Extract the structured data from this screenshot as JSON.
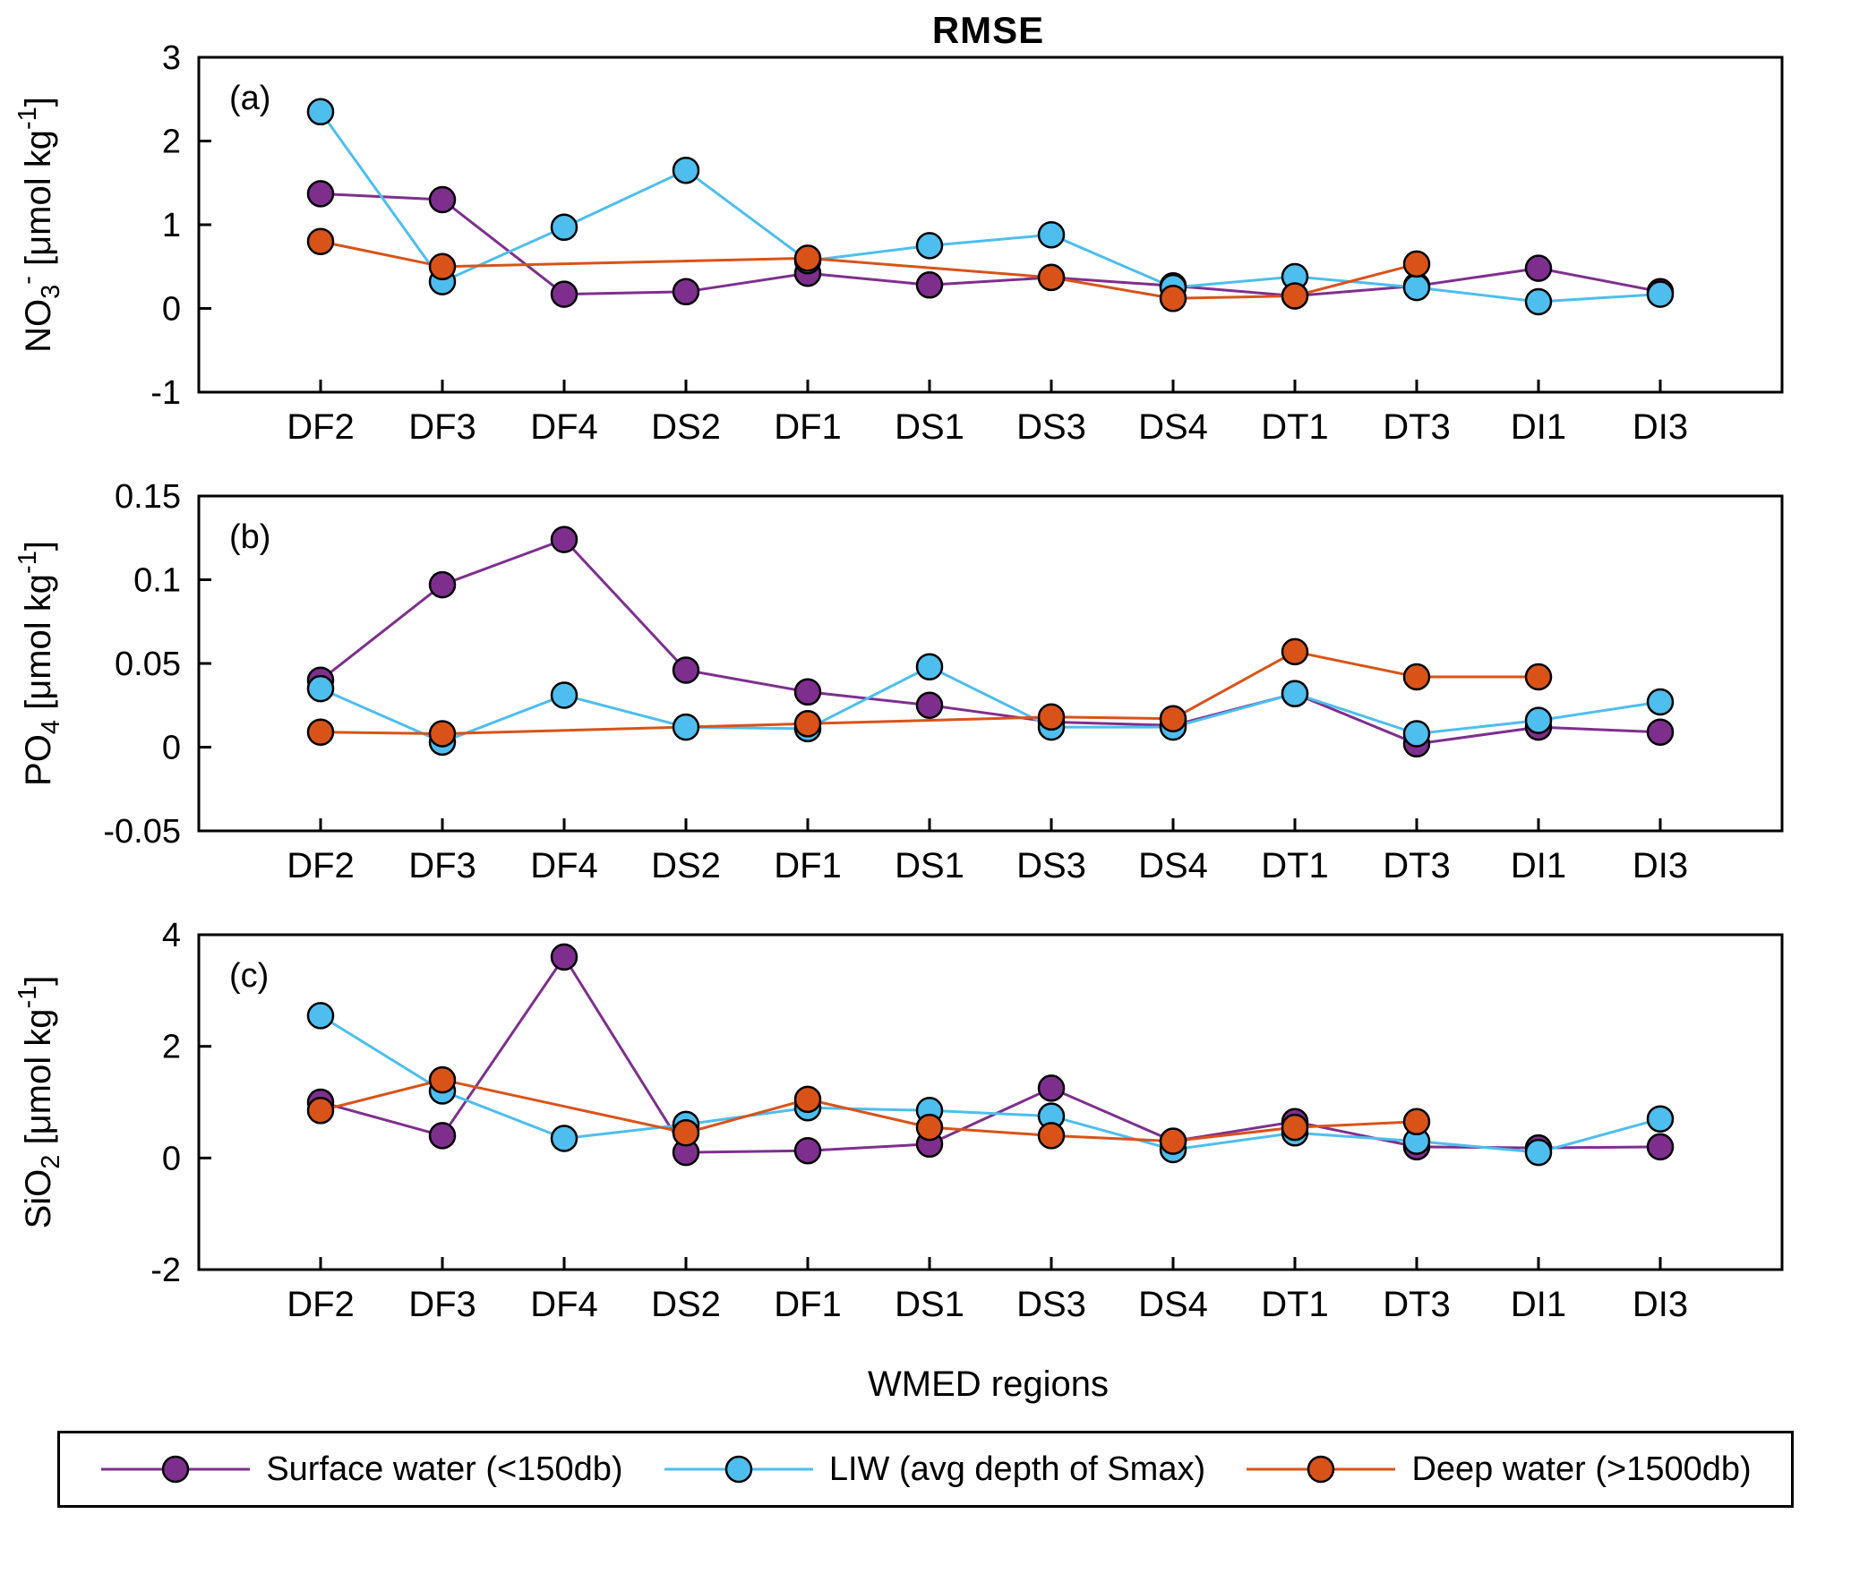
{
  "title": "RMSE",
  "xlabel": "WMED regions",
  "categories": [
    "DF2",
    "DF3",
    "DF4",
    "DS2",
    "DF1",
    "DS1",
    "DS3",
    "DS4",
    "DT1",
    "DT3",
    "DI1",
    "DI3"
  ],
  "colors": {
    "surface": "#7E2F8E",
    "liw": "#4DBEEE",
    "deep": "#D95319",
    "axis": "#000000"
  },
  "series_meta": [
    {
      "key": "surface",
      "name": "Surface water (<150db)",
      "color": "#7E2F8E"
    },
    {
      "key": "liw",
      "name": "LIW (avg depth of Smax)",
      "color": "#4DBEEE"
    },
    {
      "key": "deep",
      "name": "Deep water (>1500db)",
      "color": "#D95319"
    }
  ],
  "chart_data": [
    {
      "type": "line",
      "panel_label": "(a)",
      "ylabel": "NO_{3}^{-} [μmol kg^{-1}]",
      "ylim": [
        -1,
        3
      ],
      "yticks": [
        -1,
        0,
        1,
        2,
        3
      ],
      "categories": [
        "DF2",
        "DF3",
        "DF4",
        "DS2",
        "DF1",
        "DS1",
        "DS3",
        "DS4",
        "DT1",
        "DT3",
        "DI1",
        "DI3"
      ],
      "series": [
        {
          "name": "Surface water (<150db)",
          "values": [
            1.37,
            1.3,
            0.17,
            0.2,
            0.42,
            0.28,
            0.37,
            0.27,
            0.15,
            0.27,
            0.48,
            0.2
          ]
        },
        {
          "name": "LIW (avg depth of Smax)",
          "values": [
            2.35,
            0.32,
            0.97,
            1.65,
            0.57,
            0.75,
            0.88,
            0.25,
            0.38,
            0.25,
            0.08,
            0.17
          ]
        },
        {
          "name": "Deep water (>1500db)",
          "values": [
            0.8,
            0.5,
            null,
            null,
            0.6,
            null,
            0.37,
            0.12,
            0.15,
            0.53,
            null,
            null
          ]
        }
      ]
    },
    {
      "type": "line",
      "panel_label": "(b)",
      "ylabel": "PO_{4} [μmol kg^{-1}]",
      "ylim": [
        -0.05,
        0.15
      ],
      "yticks": [
        -0.05,
        0,
        0.05,
        0.1,
        0.15
      ],
      "categories": [
        "DF2",
        "DF3",
        "DF4",
        "DS2",
        "DF1",
        "DS1",
        "DS3",
        "DS4",
        "DT1",
        "DT3",
        "DI1",
        "DI3"
      ],
      "series": [
        {
          "name": "Surface water (<150db)",
          "values": [
            0.04,
            0.097,
            0.124,
            0.046,
            0.033,
            0.025,
            0.015,
            0.013,
            0.032,
            0.002,
            0.012,
            0.009
          ]
        },
        {
          "name": "LIW (avg depth of Smax)",
          "values": [
            0.035,
            0.003,
            0.031,
            0.012,
            0.011,
            0.048,
            0.012,
            0.012,
            0.032,
            0.008,
            0.016,
            0.027
          ]
        },
        {
          "name": "Deep water (>1500db)",
          "values": [
            0.009,
            0.008,
            null,
            null,
            0.014,
            null,
            0.018,
            0.017,
            0.057,
            0.042,
            0.042,
            null
          ]
        }
      ]
    },
    {
      "type": "line",
      "panel_label": "(c)",
      "ylabel": "SiO_{2} [μmol kg^{-1}]",
      "ylim": [
        -2,
        4
      ],
      "yticks": [
        -2,
        0,
        2,
        4
      ],
      "categories": [
        "DF2",
        "DF3",
        "DF4",
        "DS2",
        "DF1",
        "DS1",
        "DS3",
        "DS4",
        "DT1",
        "DT3",
        "DI1",
        "DI3"
      ],
      "series": [
        {
          "name": "Surface water (<150db)",
          "values": [
            1.0,
            0.4,
            3.6,
            0.1,
            0.13,
            0.25,
            1.25,
            0.3,
            0.65,
            0.2,
            0.18,
            0.2
          ]
        },
        {
          "name": "LIW (avg depth of Smax)",
          "values": [
            2.55,
            1.2,
            0.35,
            0.6,
            0.9,
            0.85,
            0.75,
            0.15,
            0.45,
            0.3,
            0.1,
            0.7
          ]
        },
        {
          "name": "Deep water (>1500db)",
          "values": [
            0.85,
            1.4,
            null,
            0.45,
            1.05,
            0.55,
            0.4,
            0.3,
            0.55,
            0.65,
            null,
            null
          ]
        }
      ]
    }
  ],
  "legend": {
    "entries": [
      {
        "label": "Surface water (<150db)",
        "color": "#7E2F8E"
      },
      {
        "label": "LIW (avg depth of Smax)",
        "color": "#4DBEEE"
      },
      {
        "label": "Deep water (>1500db)",
        "color": "#D95319"
      }
    ]
  }
}
